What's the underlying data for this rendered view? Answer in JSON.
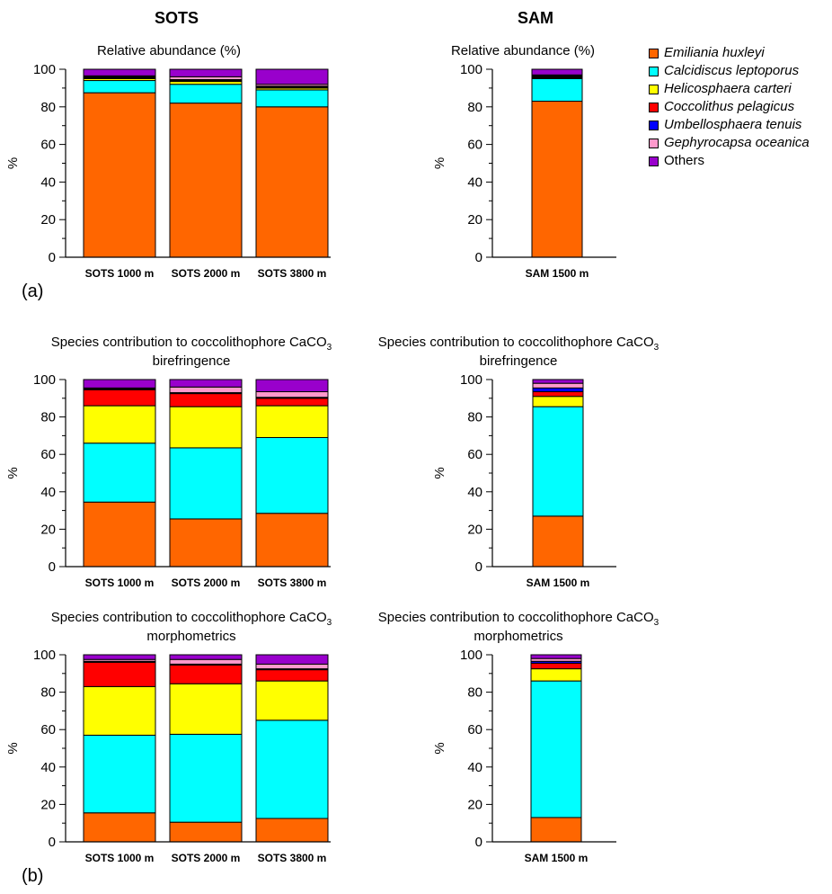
{
  "headers": {
    "sots": "SOTS",
    "sam": "SAM"
  },
  "panel_labels": {
    "a": "(a)",
    "b": "(b)"
  },
  "legend": [
    {
      "name": "Emiliania huxleyi",
      "color": "#ff6600",
      "italic": true
    },
    {
      "name": "Calcidiscus leptoporus",
      "color": "#00ffff",
      "italic": true
    },
    {
      "name": "Helicosphaera carteri",
      "color": "#ffff00",
      "italic": true
    },
    {
      "name": "Coccolithus pelagicus",
      "color": "#ff0000",
      "italic": true
    },
    {
      "name": "Umbellosphaera tenuis",
      "color": "#0000ff",
      "italic": true
    },
    {
      "name": "Gephyrocapsa oceanica",
      "color": "#ff99cc",
      "italic": true
    },
    {
      "name": "Others",
      "color": "#9900cc",
      "italic": false
    }
  ],
  "chart_data": [
    {
      "id": "sots-abundance",
      "type": "bar",
      "stacked": true,
      "title": [
        "Relative abundance (%)"
      ],
      "ylabel": "%",
      "ylim": [
        0,
        100
      ],
      "yticks": [
        "0",
        "20",
        "40",
        "60",
        "80",
        "100"
      ],
      "categories": [
        "SOTS 1000 m",
        "SOTS 2000 m",
        "SOTS 3800 m"
      ],
      "series": [
        {
          "name": "Emiliania huxleyi",
          "values": [
            87.5,
            82,
            80
          ]
        },
        {
          "name": "Calcidiscus leptoporus",
          "values": [
            6.5,
            10,
            9
          ]
        },
        {
          "name": "Helicosphaera carteri",
          "values": [
            1,
            1.5,
            1
          ]
        },
        {
          "name": "Coccolithus pelagicus",
          "values": [
            0.5,
            0.5,
            0.5
          ]
        },
        {
          "name": "Umbellosphaera tenuis",
          "values": [
            0.5,
            0.5,
            0.5
          ]
        },
        {
          "name": "Gephyrocapsa oceanica",
          "values": [
            0.5,
            1.5,
            1
          ]
        },
        {
          "name": "Others",
          "values": [
            3.5,
            4,
            8
          ]
        }
      ]
    },
    {
      "id": "sam-abundance",
      "type": "bar",
      "stacked": true,
      "title": [
        "Relative abundance (%)"
      ],
      "ylabel": "%",
      "ylim": [
        0,
        100
      ],
      "yticks": [
        "0",
        "20",
        "40",
        "60",
        "80",
        "100"
      ],
      "categories": [
        "SAM 1500 m"
      ],
      "series": [
        {
          "name": "Emiliania huxleyi",
          "values": [
            83
          ]
        },
        {
          "name": "Calcidiscus leptoporus",
          "values": [
            12
          ]
        },
        {
          "name": "Helicosphaera carteri",
          "values": [
            0.5
          ]
        },
        {
          "name": "Coccolithus pelagicus",
          "values": [
            0.5
          ]
        },
        {
          "name": "Umbellosphaera tenuis",
          "values": [
            0.5
          ]
        },
        {
          "name": "Gephyrocapsa oceanica",
          "values": [
            0.5
          ]
        },
        {
          "name": "Others",
          "values": [
            3
          ]
        }
      ]
    },
    {
      "id": "sots-birefringence",
      "type": "bar",
      "stacked": true,
      "title": [
        "Species contribution to coccolithophore CaCO",
        "birefringence"
      ],
      "title_subscript": "3",
      "ylabel": "%",
      "ylim": [
        0,
        100
      ],
      "yticks": [
        "0",
        "20",
        "40",
        "60",
        "80",
        "100"
      ],
      "categories": [
        "SOTS 1000 m",
        "SOTS 2000 m",
        "SOTS 3800 m"
      ],
      "series": [
        {
          "name": "Emiliania huxleyi",
          "values": [
            34.5,
            25.5,
            28.5
          ]
        },
        {
          "name": "Calcidiscus leptoporus",
          "values": [
            31.5,
            38,
            40.5
          ]
        },
        {
          "name": "Helicosphaera carteri",
          "values": [
            20,
            22,
            17
          ]
        },
        {
          "name": "Coccolithus pelagicus",
          "values": [
            8.5,
            7,
            4
          ]
        },
        {
          "name": "Umbellosphaera tenuis",
          "values": [
            0.5,
            0.5,
            0.5
          ]
        },
        {
          "name": "Gephyrocapsa oceanica",
          "values": [
            0.5,
            3,
            3
          ]
        },
        {
          "name": "Others",
          "values": [
            4.5,
            4,
            6.5
          ]
        }
      ]
    },
    {
      "id": "sam-birefringence",
      "type": "bar",
      "stacked": true,
      "title": [
        "Species contribution to coccolithophore CaCO",
        "birefringence"
      ],
      "title_subscript": "3",
      "ylabel": "%",
      "ylim": [
        0,
        100
      ],
      "yticks": [
        "0",
        "20",
        "40",
        "60",
        "80",
        "100"
      ],
      "categories": [
        "SAM 1500 m"
      ],
      "series": [
        {
          "name": "Emiliania huxleyi",
          "values": [
            27
          ]
        },
        {
          "name": "Calcidiscus leptoporus",
          "values": [
            58.5
          ]
        },
        {
          "name": "Helicosphaera carteri",
          "values": [
            5.5
          ]
        },
        {
          "name": "Coccolithus pelagicus",
          "values": [
            2.5
          ]
        },
        {
          "name": "Umbellosphaera tenuis",
          "values": [
            2
          ]
        },
        {
          "name": "Gephyrocapsa oceanica",
          "values": [
            2.5
          ]
        },
        {
          "name": "Others",
          "values": [
            2
          ]
        }
      ]
    },
    {
      "id": "sots-morphometrics",
      "type": "bar",
      "stacked": true,
      "title": [
        "Species contribution to coccolithophore CaCO",
        "morphometrics"
      ],
      "title_subscript": "3",
      "ylabel": "%",
      "ylim": [
        0,
        100
      ],
      "yticks": [
        "0",
        "20",
        "40",
        "60",
        "80",
        "100"
      ],
      "categories": [
        "SOTS 1000 m",
        "SOTS 2000 m",
        "SOTS 3800 m"
      ],
      "series": [
        {
          "name": "Emiliania huxleyi",
          "values": [
            15.5,
            10.5,
            12.5
          ]
        },
        {
          "name": "Calcidiscus leptoporus",
          "values": [
            41.5,
            47,
            52.5
          ]
        },
        {
          "name": "Helicosphaera carteri",
          "values": [
            26,
            27,
            21
          ]
        },
        {
          "name": "Coccolithus pelagicus",
          "values": [
            13,
            10,
            6
          ]
        },
        {
          "name": "Umbellosphaera tenuis",
          "values": [
            0.5,
            0.5,
            0.5
          ]
        },
        {
          "name": "Gephyrocapsa oceanica",
          "values": [
            1,
            2.5,
            2.5
          ]
        },
        {
          "name": "Others",
          "values": [
            2.5,
            2.5,
            5
          ]
        }
      ]
    },
    {
      "id": "sam-morphometrics",
      "type": "bar",
      "stacked": true,
      "title": [
        "Species contribution to coccolithophore CaCO",
        "morphometrics"
      ],
      "title_subscript": "3",
      "ylabel": "%",
      "ylim": [
        0,
        100
      ],
      "yticks": [
        "0",
        "20",
        "40",
        "60",
        "80",
        "100"
      ],
      "categories": [
        "SAM 1500 m"
      ],
      "series": [
        {
          "name": "Emiliania huxleyi",
          "values": [
            13
          ]
        },
        {
          "name": "Calcidiscus leptoporus",
          "values": [
            73
          ]
        },
        {
          "name": "Helicosphaera carteri",
          "values": [
            6.5
          ]
        },
        {
          "name": "Coccolithus pelagicus",
          "values": [
            3
          ]
        },
        {
          "name": "Umbellosphaera tenuis",
          "values": [
            1
          ]
        },
        {
          "name": "Gephyrocapsa oceanica",
          "values": [
            1.5
          ]
        },
        {
          "name": "Others",
          "values": [
            2
          ]
        }
      ]
    }
  ]
}
